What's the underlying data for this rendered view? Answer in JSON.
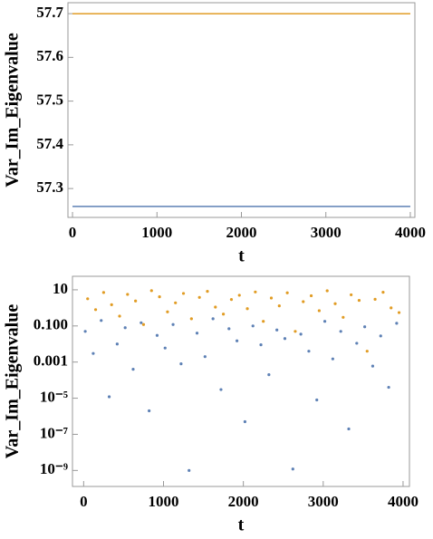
{
  "chart_data": [
    {
      "type": "line",
      "x_label": "t",
      "y_label": "Var_Im_Eigenvalue",
      "x": [
        0,
        4000
      ],
      "series": [
        {
          "color": "#E19C24",
          "values": [
            57.7,
            57.7
          ]
        },
        {
          "color": "#5E81B5",
          "values": [
            57.259,
            57.259
          ]
        }
      ],
      "xlim": [
        -54,
        4054
      ],
      "ylim": [
        57.234,
        57.725
      ],
      "xticks": [
        0,
        1000,
        2000,
        3000,
        4000
      ],
      "yticks": [
        57.3,
        57.4,
        57.5,
        57.6,
        57.7
      ],
      "grid": false
    },
    {
      "type": "scatter",
      "x_label": "t",
      "y_label": "Var_Im_Eigenvalue",
      "yscale": "log",
      "series": [
        {
          "color": "#E19C24",
          "x": [
            50,
            150,
            250,
            350,
            450,
            550,
            650,
            750,
            850,
            950,
            1050,
            1150,
            1250,
            1350,
            1450,
            1550,
            1650,
            1750,
            1850,
            1950,
            2050,
            2150,
            2250,
            2350,
            2450,
            2550,
            2650,
            2750,
            2850,
            2950,
            3050,
            3150,
            3250,
            3350,
            3450,
            3550,
            3650,
            3750,
            3850,
            3950
          ],
          "values": [
            3.2,
            0.8,
            7.1,
            1.5,
            0.35,
            5.6,
            2.4,
            0.12,
            9.0,
            4.1,
            0.6,
            1.9,
            6.3,
            0.25,
            3.8,
            8.2,
            1.1,
            0.45,
            2.9,
            5.0,
            0.9,
            7.6,
            0.18,
            3.5,
            1.3,
            6.8,
            0.05,
            2.2,
            4.7,
            0.7,
            8.8,
            1.7,
            0.3,
            5.3,
            2.6,
            0.004,
            3.0,
            7.3,
            1.0,
            0.55
          ]
        },
        {
          "color": "#5E81B5",
          "x": [
            20,
            120,
            220,
            320,
            420,
            520,
            620,
            720,
            820,
            920,
            1020,
            1120,
            1220,
            1320,
            1420,
            1520,
            1620,
            1720,
            1820,
            1920,
            2020,
            2120,
            2220,
            2320,
            2420,
            2520,
            2620,
            2720,
            2820,
            2920,
            3020,
            3120,
            3220,
            3320,
            3420,
            3520,
            3620,
            3720,
            3820,
            3920
          ],
          "values": [
            0.05,
            0.003,
            0.2,
            1.2e-05,
            0.01,
            0.08,
            0.0004,
            0.15,
            2e-06,
            0.03,
            0.006,
            0.12,
            0.0008,
            1e-09,
            0.04,
            0.002,
            0.25,
            3e-05,
            0.07,
            0.015,
            5e-07,
            0.1,
            0.009,
            0.0002,
            0.06,
            0.02,
            1.2e-09,
            0.035,
            0.004,
            8e-06,
            0.18,
            0.0015,
            0.05,
            2e-07,
            0.011,
            0.09,
            0.0006,
            0.028,
            4e-05,
            0.14
          ]
        }
      ],
      "xlim": [
        -140,
        4080
      ],
      "ylim": [
        1.3e-10,
        56
      ],
      "xticks": [
        0,
        1000,
        2000,
        3000,
        4000
      ],
      "yticks": [
        10,
        {
          "value": 0.1,
          "label": "0.100"
        },
        0.001,
        {
          "value": 1e-05,
          "label": "10⁻⁵"
        },
        {
          "value": 1e-07,
          "label": "10⁻⁷"
        },
        {
          "value": 1e-09,
          "label": "10⁻⁹"
        }
      ],
      "grid": false
    }
  ]
}
